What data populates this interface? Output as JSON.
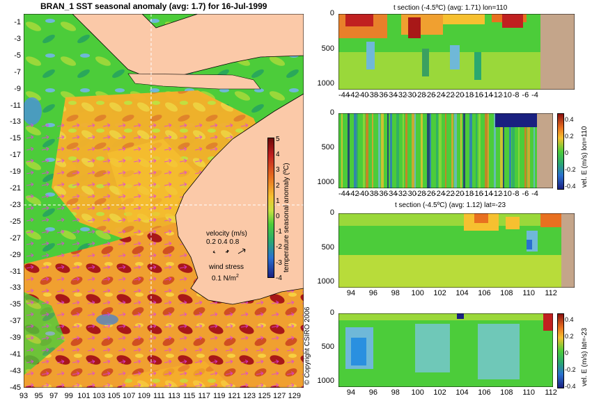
{
  "map": {
    "title": "BRAN_1  SST seasonal anomaly  (avg: 1.7) for 16-Jul-1999",
    "lat_ticks": [
      "-1",
      "-3",
      "-5",
      "-7",
      "-9",
      "-11",
      "-13",
      "-15",
      "-17",
      "-19",
      "-21",
      "-23",
      "-25",
      "-27",
      "-29",
      "-31",
      "-33",
      "-35",
      "-37",
      "-39",
      "-41",
      "-43",
      "-45"
    ],
    "lon_ticks": [
      "93",
      "95",
      "97",
      "99",
      "101",
      "103",
      "105",
      "107",
      "109",
      "111",
      "113",
      "115",
      "117",
      "119",
      "121",
      "123",
      "125",
      "127",
      "129"
    ],
    "colorbar": {
      "label": "temperature seasonal anomaly (ºC)",
      "ticks": [
        "5",
        "4",
        "3",
        "2",
        "1",
        "0",
        "-1",
        "-2",
        "-3",
        "-4"
      ]
    },
    "velocity_label": "velocity (m/s)",
    "velocity_values": "0.2 0.4 0.8",
    "wind_label": "wind stress",
    "wind_value": "0.1 N/m",
    "wind_unit_sup": "2",
    "copyright": "© Copyright CSIRO 2006"
  },
  "panels": [
    {
      "title": "t section (-4.5ºC) (avg: 1.71) lon=110",
      "y_ticks": [
        "0",
        "500",
        "1000"
      ],
      "x_ticks": [
        "-44",
        "-42",
        "-40",
        "-38",
        "-36",
        "-34",
        "-32",
        "-30",
        "-28",
        "-26",
        "-24",
        "-22",
        "-20",
        "-18",
        "-16",
        "-14",
        "-12",
        "-10",
        "-8",
        "-6",
        "-4"
      ],
      "colorbar": null
    },
    {
      "title": "",
      "y_ticks": [
        "0",
        "500",
        "1000"
      ],
      "x_ticks": [
        "-44",
        "-42",
        "-40",
        "-38",
        "-36",
        "-34",
        "-32",
        "-30",
        "-28",
        "-26",
        "-24",
        "-22",
        "-20",
        "-18",
        "-16",
        "-14",
        "-12",
        "-10",
        "-8",
        "-6",
        "-4"
      ],
      "colorbar": {
        "label": "vel. E (m/s) lon=110",
        "ticks": [
          "0.4",
          "0.2",
          "0",
          "-0.2",
          "-0.4"
        ]
      }
    },
    {
      "title": "t section (-4.5ºC) (avg: 1.12) lat=-23",
      "y_ticks": [
        "0",
        "500",
        "1000"
      ],
      "x_ticks": [
        "94",
        "96",
        "98",
        "100",
        "102",
        "104",
        "106",
        "108",
        "110",
        "112"
      ],
      "colorbar": null
    },
    {
      "title": "",
      "y_ticks": [
        "0",
        "500",
        "1000"
      ],
      "x_ticks": [
        "94",
        "96",
        "98",
        "100",
        "102",
        "104",
        "106",
        "108",
        "110",
        "112"
      ],
      "colorbar": {
        "label": "vel. E (m/s) lat=-23",
        "ticks": [
          "0.4",
          "0.2",
          "0",
          "-0.2",
          "-0.4"
        ]
      }
    }
  ],
  "colors": {
    "land": "#fbc9a8",
    "land_section": "#c4a58a",
    "ocean_green": "#2ec832",
    "ocean_warm": "#f4a020",
    "anomaly_hot": "#8a1010",
    "anomaly_cold": "#1f6fd0",
    "arrows": "#e040e0"
  },
  "chart_data": [
    {
      "type": "heatmap",
      "title": "BRAN_1  SST seasonal anomaly  (avg: 1.7) for 16-Jul-1999",
      "xlabel": "",
      "ylabel": "",
      "xlim": [
        93,
        130
      ],
      "ylim": [
        -45,
        0
      ],
      "colorbar_label": "temperature seasonal anomaly (ºC)",
      "colorbar_range": [
        -4,
        5
      ],
      "avg": 1.7,
      "reference_lines": {
        "lon": 110,
        "lat": -23
      }
    },
    {
      "type": "heatmap",
      "title": "t section (-4.5ºC) (avg: 1.71) lon=110",
      "xlim": [
        -45,
        -3
      ],
      "ylim": [
        1050,
        0
      ],
      "avg": 1.71
    },
    {
      "type": "heatmap",
      "title": "",
      "xlim": [
        -45,
        -3
      ],
      "ylim": [
        1050,
        0
      ],
      "colorbar_label": "vel. E (m/s) lon=110",
      "colorbar_range": [
        -0.4,
        0.4
      ]
    },
    {
      "type": "heatmap",
      "title": "t section (-4.5ºC) (avg: 1.12) lat=-23",
      "xlim": [
        93,
        114
      ],
      "ylim": [
        1050,
        0
      ],
      "avg": 1.12
    },
    {
      "type": "heatmap",
      "title": "",
      "xlim": [
        93,
        114
      ],
      "ylim": [
        1050,
        0
      ],
      "colorbar_label": "vel. E (m/s) lat=-23",
      "colorbar_range": [
        -0.4,
        0.4
      ]
    }
  ]
}
